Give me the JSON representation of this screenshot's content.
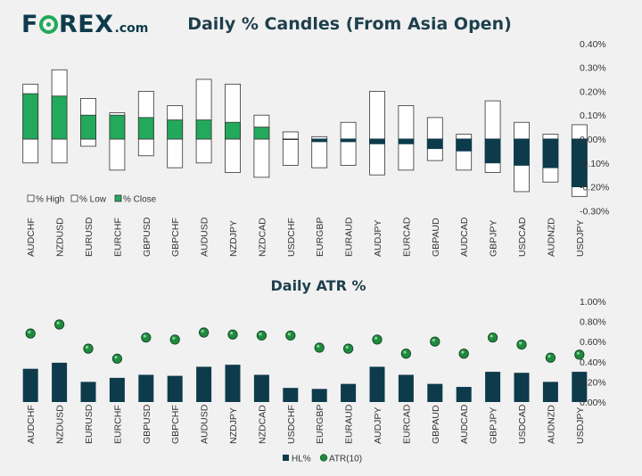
{
  "brand": {
    "logo_text": "FOREX.com",
    "part1": "F",
    "part2": "REX",
    "suffix": ".com"
  },
  "colors": {
    "green": "#22a95b",
    "navy": "#0d3b4c",
    "outline": "#333333",
    "dot": "#1f8a3e"
  },
  "chart_data": [
    {
      "type": "bar",
      "title": "Daily % Candles (From Asia Open)",
      "categories": [
        "AUDCHF",
        "NZDUSD",
        "EURUSD",
        "EURCHF",
        "GBPUSD",
        "GBPCHF",
        "AUDUSD",
        "NZDJPY",
        "NZDCAD",
        "USDCHF",
        "EURGBP",
        "EURAUD",
        "AUDJPY",
        "EURCAD",
        "GBPAUD",
        "AUDCAD",
        "GBPJPY",
        "USDCAD",
        "AUDNZD",
        "USDJPY"
      ],
      "series": [
        {
          "name": "% High",
          "values": [
            0.23,
            0.29,
            0.17,
            0.11,
            0.2,
            0.14,
            0.25,
            0.23,
            0.1,
            0.03,
            0.01,
            0.07,
            0.2,
            0.14,
            0.09,
            0.02,
            0.16,
            0.07,
            0.02,
            0.06
          ]
        },
        {
          "name": "% Low",
          "values": [
            -0.1,
            -0.1,
            -0.03,
            -0.13,
            -0.07,
            -0.12,
            -0.1,
            -0.14,
            -0.16,
            -0.11,
            -0.12,
            -0.11,
            -0.15,
            -0.13,
            -0.09,
            -0.13,
            -0.14,
            -0.22,
            -0.18,
            -0.24
          ]
        },
        {
          "name": "% Close",
          "values": [
            0.19,
            0.18,
            0.1,
            0.1,
            0.09,
            0.08,
            0.08,
            0.07,
            0.05,
            0.0,
            -0.01,
            -0.01,
            -0.02,
            -0.02,
            -0.04,
            -0.05,
            -0.1,
            -0.11,
            -0.12,
            -0.2
          ]
        }
      ],
      "ylim": [
        -0.3,
        0.4
      ],
      "yticks": [
        "0.40%",
        "0.30%",
        "0.20%",
        "0.10%",
        "0.00%",
        "-0.10%",
        "-0.20%",
        "-0.30%"
      ],
      "legend": [
        "% High",
        "% Low",
        "% Close"
      ],
      "legend_position": "bottom-left"
    },
    {
      "type": "bar",
      "title": "Daily ATR %",
      "categories": [
        "AUDCHF",
        "NZDUSD",
        "EURUSD",
        "EURCHF",
        "GBPUSD",
        "GBPCHF",
        "AUDUSD",
        "NZDJPY",
        "NZDCAD",
        "USDCHF",
        "EURGBP",
        "EURAUD",
        "AUDJPY",
        "EURCAD",
        "GBPAUD",
        "AUDCAD",
        "GBPJPY",
        "USDCAD",
        "AUDNZD",
        "USDJPY"
      ],
      "series": [
        {
          "name": "HL%",
          "values": [
            0.33,
            0.39,
            0.2,
            0.24,
            0.27,
            0.26,
            0.35,
            0.37,
            0.27,
            0.14,
            0.13,
            0.18,
            0.35,
            0.27,
            0.18,
            0.15,
            0.3,
            0.29,
            0.2,
            0.3
          ]
        },
        {
          "name": "ATR(10)",
          "values": [
            0.68,
            0.77,
            0.53,
            0.43,
            0.64,
            0.62,
            0.69,
            0.67,
            0.66,
            0.66,
            0.54,
            0.53,
            0.62,
            0.48,
            0.6,
            0.48,
            0.64,
            0.57,
            0.44,
            0.47
          ]
        }
      ],
      "ylim": [
        0.0,
        1.0
      ],
      "yticks": [
        "1.00%",
        "0.80%",
        "0.60%",
        "0.40%",
        "0.20%",
        "0.00%"
      ],
      "legend": [
        "HL%",
        "ATR(10)"
      ],
      "legend_position": "bottom"
    }
  ]
}
